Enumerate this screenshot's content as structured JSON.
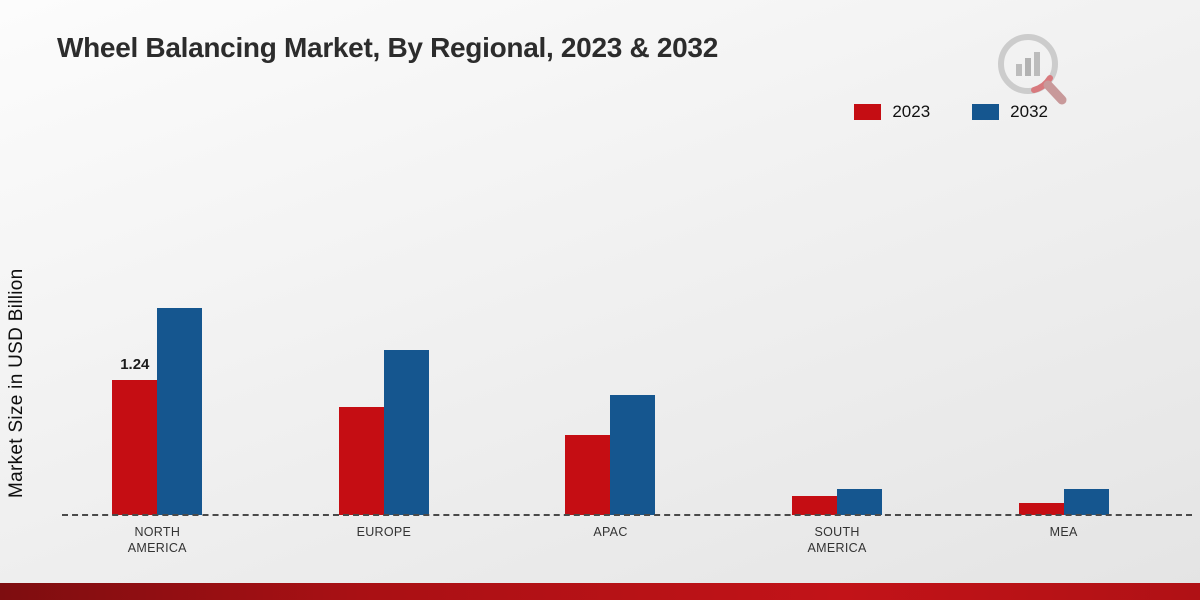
{
  "title": "Wheel Balancing Market, By Regional, 2023 & 2032",
  "ylabel": "Market Size in USD Billion",
  "colors": {
    "series_2023": "#c50d13",
    "series_2032": "#15568f",
    "ribbon": "#b01115",
    "baseline": "#4a4a4a"
  },
  "chart_data": {
    "type": "bar",
    "categories": [
      "NORTH AMERICA",
      "EUROPE",
      "APAC",
      "SOUTH AMERICA",
      "MEA"
    ],
    "series": [
      {
        "name": "2023",
        "color": "#c50d13",
        "values": [
          1.24,
          0.99,
          0.73,
          0.17,
          0.11
        ]
      },
      {
        "name": "2032",
        "color": "#15568f",
        "values": [
          1.9,
          1.51,
          1.1,
          0.24,
          0.24
        ]
      }
    ],
    "title": "Wheel Balancing Market, By Regional, 2023 & 2032",
    "xlabel": "",
    "ylabel": "Market Size in USD Billion",
    "ylim": [
      0,
      2.5
    ],
    "grid": false,
    "legend_position": "top-right",
    "baseline_style": "dashed",
    "data_labels": [
      {
        "series": "2023",
        "category_index": 0,
        "text": "1.24"
      }
    ]
  }
}
